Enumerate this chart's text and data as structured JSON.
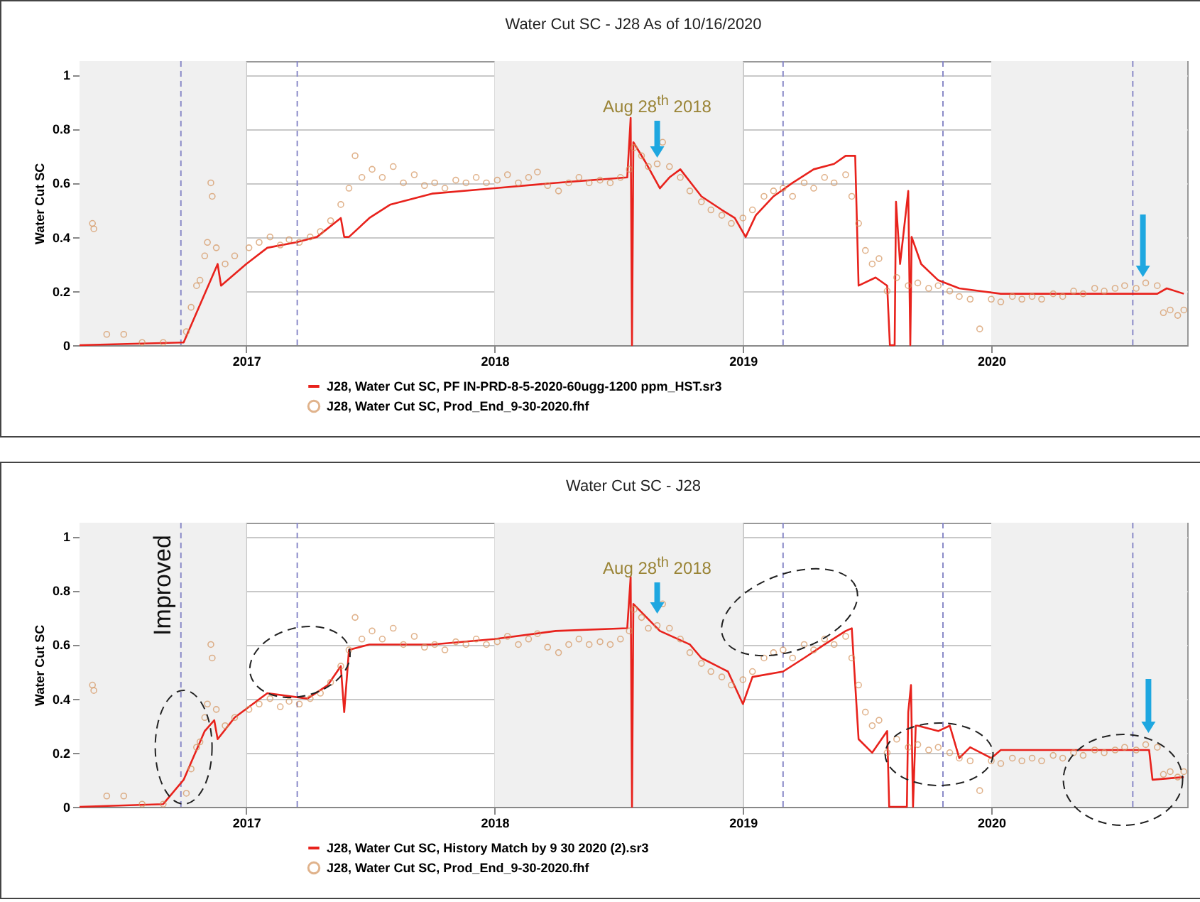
{
  "chart_data": [
    {
      "type": "line",
      "title": "Water Cut SC - J28 As of 10/16/2020",
      "ylabel": "Water Cut SC",
      "xlim": [
        "2016-05-01",
        "2020-10-15"
      ],
      "ylim": [
        0,
        1.05
      ],
      "xticks": [
        "2017",
        "2018",
        "2019",
        "2020"
      ],
      "yticks": [
        0,
        0.2,
        0.4,
        0.6,
        0.8,
        1
      ],
      "grid": true,
      "legend": "bottom",
      "bands": [
        {
          "axis": "x",
          "from": "2016-05-01",
          "to": "2017-01-01",
          "color": "#f0f0f0"
        },
        {
          "axis": "x",
          "from": "2018-01-01",
          "to": "2019-01-01",
          "color": "#f0f0f0"
        },
        {
          "axis": "x",
          "from": "2020-01-01",
          "to": "2020-10-15",
          "color": "#f0f0f0"
        }
      ],
      "ref_lines": [
        {
          "axis": "x",
          "value": "2016-09-27",
          "color": "#8a8ac8",
          "line_style": "dashed"
        },
        {
          "axis": "x",
          "value": "2017-03-17",
          "color": "#8a8ac8",
          "line_style": "dashed"
        },
        {
          "axis": "x",
          "value": "2019-03-01",
          "color": "#8a8ac8",
          "line_style": "dashed"
        },
        {
          "axis": "x",
          "value": "2019-10-22",
          "color": "#8a8ac8",
          "line_style": "dashed"
        },
        {
          "axis": "x",
          "value": "2020-07-27",
          "color": "#8a8ac8",
          "line_style": "dashed"
        }
      ],
      "annotations": [
        "Aug 28$^{th}$ 2018"
      ],
      "series": [
        {
          "name": "J28, Water Cut SC, PF IN-PRD-8-5-2020-60ugg-1200 ppm_HST.sr3",
          "type": "line",
          "color": "#e8221c",
          "x": [
            "2016-05-01",
            "2016-10-01",
            "2016-11-20",
            "2016-11-25",
            "2017-01-01",
            "2017-02-01",
            "2017-03-15",
            "2017-04-15",
            "2017-05-20",
            "2017-05-25",
            "2017-06-01",
            "2017-07-01",
            "2017-08-01",
            "2017-10-01",
            "2018-01-01",
            "2018-04-01",
            "2018-07-15",
            "2018-07-20",
            "2018-07-22",
            "2018-07-24",
            "2018-08-10",
            "2018-09-01",
            "2018-09-15",
            "2018-10-01",
            "2018-11-01",
            "2018-12-01",
            "2018-12-20",
            "2019-01-05",
            "2019-01-20",
            "2019-02-15",
            "2019-03-15",
            "2019-04-15",
            "2019-05-15",
            "2019-06-01",
            "2019-06-15",
            "2019-06-20",
            "2019-07-15",
            "2019-08-01",
            "2019-08-05",
            "2019-08-12",
            "2019-08-14",
            "2019-08-20",
            "2019-09-01",
            "2019-09-04",
            "2019-09-06",
            "2019-09-20",
            "2019-10-15",
            "2019-11-15",
            "2019-12-15",
            "2020-01-15",
            "2020-09-01",
            "2020-09-15",
            "2020-10-10"
          ],
          "values": [
            0,
            0.01,
            0.3,
            0.22,
            0.3,
            0.36,
            0.38,
            0.4,
            0.47,
            0.4,
            0.4,
            0.47,
            0.52,
            0.56,
            0.58,
            0.6,
            0.62,
            0.84,
            0,
            0.75,
            0.68,
            0.58,
            0.62,
            0.65,
            0.55,
            0.5,
            0.47,
            0.4,
            0.48,
            0.55,
            0.6,
            0.65,
            0.67,
            0.7,
            0.7,
            0.22,
            0.25,
            0.22,
            0,
            0,
            0.53,
            0.3,
            0.57,
            0,
            0.4,
            0.3,
            0.24,
            0.21,
            0.2,
            0.19,
            0.19,
            0.21,
            0.19
          ]
        },
        {
          "name": "J28, Water Cut SC, Prod_End_9-30-2020.fhf",
          "type": "scatter",
          "marker": "circle",
          "color": "#d4935c",
          "x": [
            "2016-05-20",
            "2016-05-22",
            "2016-06-10",
            "2016-07-05",
            "2016-08-01",
            "2016-09-01",
            "2016-10-05",
            "2016-10-12",
            "2016-10-20",
            "2016-10-25",
            "2016-11-01",
            "2016-11-05",
            "2016-11-10",
            "2016-11-12",
            "2016-11-18",
            "2016-12-01",
            "2016-12-15",
            "2017-01-05",
            "2017-01-20",
            "2017-02-05",
            "2017-02-20",
            "2017-03-05",
            "2017-03-20",
            "2017-04-05",
            "2017-04-20",
            "2017-05-05",
            "2017-05-20",
            "2017-06-01",
            "2017-06-10",
            "2017-06-20",
            "2017-07-05",
            "2017-07-20",
            "2017-08-05",
            "2017-08-20",
            "2017-09-05",
            "2017-09-20",
            "2017-10-05",
            "2017-10-20",
            "2017-11-05",
            "2017-11-20",
            "2017-12-05",
            "2017-12-20",
            "2018-01-05",
            "2018-01-20",
            "2018-02-05",
            "2018-02-20",
            "2018-03-05",
            "2018-03-20",
            "2018-04-05",
            "2018-04-20",
            "2018-05-05",
            "2018-05-20",
            "2018-06-05",
            "2018-06-20",
            "2018-07-05",
            "2018-07-18",
            "2018-07-25",
            "2018-08-05",
            "2018-08-15",
            "2018-08-28",
            "2018-09-05",
            "2018-09-15",
            "2018-10-01",
            "2018-10-15",
            "2018-11-01",
            "2018-11-15",
            "2018-12-01",
            "2018-12-15",
            "2019-01-01",
            "2019-01-15",
            "2019-02-01",
            "2019-02-15",
            "2019-03-01",
            "2019-03-15",
            "2019-04-01",
            "2019-04-15",
            "2019-05-01",
            "2019-05-15",
            "2019-06-01",
            "2019-06-10",
            "2019-06-20",
            "2019-06-30",
            "2019-07-10",
            "2019-07-20",
            "2019-08-01",
            "2019-08-15",
            "2019-09-01",
            "2019-09-15",
            "2019-10-01",
            "2019-10-15",
            "2019-11-01",
            "2019-11-15",
            "2019-12-01",
            "2019-12-15",
            "2020-01-01",
            "2020-01-15",
            "2020-02-01",
            "2020-02-15",
            "2020-03-01",
            "2020-03-15",
            "2020-04-01",
            "2020-04-15",
            "2020-05-01",
            "2020-05-15",
            "2020-06-01",
            "2020-06-15",
            "2020-07-01",
            "2020-07-15",
            "2020-08-01",
            "2020-08-15",
            "2020-09-01",
            "2020-09-10",
            "2020-09-20",
            "2020-10-01",
            "2020-10-10"
          ],
          "values": [
            0.45,
            0.43,
            0.04,
            0.04,
            0.01,
            0.01,
            0.05,
            0.14,
            0.22,
            0.24,
            0.33,
            0.38,
            0.6,
            0.55,
            0.36,
            0.3,
            0.33,
            0.36,
            0.38,
            0.4,
            0.37,
            0.39,
            0.38,
            0.4,
            0.42,
            0.46,
            0.52,
            0.58,
            0.7,
            0.62,
            0.65,
            0.62,
            0.66,
            0.6,
            0.63,
            0.59,
            0.6,
            0.58,
            0.61,
            0.6,
            0.62,
            0.6,
            0.61,
            0.63,
            0.6,
            0.62,
            0.64,
            0.59,
            0.57,
            0.6,
            0.62,
            0.6,
            0.61,
            0.6,
            0.62,
            0.65,
            0.73,
            0.7,
            0.66,
            0.67,
            0.75,
            0.66,
            0.62,
            0.57,
            0.53,
            0.5,
            0.48,
            0.45,
            0.47,
            0.5,
            0.55,
            0.57,
            0.58,
            0.55,
            0.6,
            0.58,
            0.62,
            0.6,
            0.63,
            0.55,
            0.45,
            0.35,
            0.3,
            0.32,
            0.2,
            0.25,
            0.22,
            0.23,
            0.21,
            0.22,
            0.2,
            0.18,
            0.17,
            0.06,
            0.17,
            0.16,
            0.18,
            0.17,
            0.18,
            0.17,
            0.19,
            0.18,
            0.2,
            0.19,
            0.21,
            0.2,
            0.21,
            0.22,
            0.21,
            0.23,
            0.22,
            0.12,
            0.13,
            0.11,
            0.13
          ]
        }
      ]
    },
    {
      "type": "line",
      "title": "Water Cut SC - J28",
      "ylabel": "Water Cut SC",
      "xlim": [
        "2016-05-01",
        "2020-10-15"
      ],
      "ylim": [
        0,
        1.05
      ],
      "xticks": [
        "2017",
        "2018",
        "2019",
        "2020"
      ],
      "yticks": [
        0,
        0.2,
        0.4,
        0.6,
        0.8,
        1
      ],
      "grid": true,
      "legend": "bottom",
      "bands": [
        {
          "axis": "x",
          "from": "2016-05-01",
          "to": "2017-01-01",
          "color": "#f0f0f0"
        },
        {
          "axis": "x",
          "from": "2018-01-01",
          "to": "2019-01-01",
          "color": "#f0f0f0"
        },
        {
          "axis": "x",
          "from": "2020-01-01",
          "to": "2020-10-15",
          "color": "#f0f0f0"
        }
      ],
      "ref_lines": [
        {
          "axis": "x",
          "value": "2016-09-27",
          "color": "#8a8ac8",
          "line_style": "dashed"
        },
        {
          "axis": "x",
          "value": "2017-03-17",
          "color": "#8a8ac8",
          "line_style": "dashed"
        },
        {
          "axis": "x",
          "value": "2019-03-01",
          "color": "#8a8ac8",
          "line_style": "dashed"
        },
        {
          "axis": "x",
          "value": "2019-10-22",
          "color": "#8a8ac8",
          "line_style": "dashed"
        },
        {
          "axis": "x",
          "value": "2020-07-27",
          "color": "#8a8ac8",
          "line_style": "dashed"
        }
      ],
      "annotations": [
        "Improved",
        "Aug 28$^{th}$ 2018"
      ],
      "series": [
        {
          "name": "J28, Water Cut SC, History Match by 9 30 2020 (2).sr3",
          "type": "line",
          "color": "#e8221c",
          "x": [
            "2016-05-01",
            "2016-09-01",
            "2016-10-01",
            "2016-11-01",
            "2016-11-15",
            "2016-11-20",
            "2016-12-15",
            "2017-02-01",
            "2017-04-01",
            "2017-05-01",
            "2017-05-20",
            "2017-05-25",
            "2017-06-01",
            "2017-07-01",
            "2017-10-01",
            "2018-01-01",
            "2018-04-01",
            "2018-07-15",
            "2018-07-20",
            "2018-07-22",
            "2018-07-24",
            "2018-09-01",
            "2018-10-15",
            "2018-11-01",
            "2018-12-10",
            "2019-01-01",
            "2019-01-15",
            "2019-03-01",
            "2019-04-01",
            "2019-05-01",
            "2019-06-01",
            "2019-06-10",
            "2019-06-20",
            "2019-07-10",
            "2019-08-01",
            "2019-08-04",
            "2019-08-10",
            "2019-08-30",
            "2019-09-01",
            "2019-09-05",
            "2019-09-08",
            "2019-09-12",
            "2019-09-15",
            "2019-10-15",
            "2019-11-01",
            "2019-11-15",
            "2019-12-01",
            "2020-01-01",
            "2020-01-15",
            "2020-08-20",
            "2020-08-25",
            "2020-10-10"
          ],
          "values": [
            0,
            0.01,
            0.1,
            0.28,
            0.32,
            0.25,
            0.33,
            0.42,
            0.4,
            0.45,
            0.52,
            0.35,
            0.58,
            0.6,
            0.6,
            0.62,
            0.65,
            0.66,
            0.85,
            0,
            0.75,
            0.65,
            0.6,
            0.55,
            0.5,
            0.38,
            0.48,
            0.5,
            0.55,
            0.6,
            0.65,
            0.66,
            0.25,
            0.2,
            0.28,
            0,
            0,
            0,
            0.35,
            0.45,
            0,
            0.3,
            0.3,
            0.28,
            0.3,
            0.18,
            0.22,
            0.18,
            0.21,
            0.21,
            0.1,
            0.11
          ]
        },
        {
          "name": "J28, Water Cut SC, Prod_End_9-30-2020.fhf",
          "type": "scatter",
          "marker": "circle",
          "color": "#d4935c",
          "x": [
            "2016-05-20",
            "2016-05-22",
            "2016-06-10",
            "2016-07-05",
            "2016-08-01",
            "2016-09-01",
            "2016-10-05",
            "2016-10-12",
            "2016-10-20",
            "2016-10-25",
            "2016-11-01",
            "2016-11-05",
            "2016-11-10",
            "2016-11-12",
            "2016-11-18",
            "2016-12-01",
            "2016-12-15",
            "2017-01-05",
            "2017-01-20",
            "2017-02-05",
            "2017-02-20",
            "2017-03-05",
            "2017-03-20",
            "2017-04-05",
            "2017-04-20",
            "2017-05-05",
            "2017-05-20",
            "2017-06-01",
            "2017-06-10",
            "2017-06-20",
            "2017-07-05",
            "2017-07-20",
            "2017-08-05",
            "2017-08-20",
            "2017-09-05",
            "2017-09-20",
            "2017-10-05",
            "2017-10-20",
            "2017-11-05",
            "2017-11-20",
            "2017-12-05",
            "2017-12-20",
            "2018-01-05",
            "2018-01-20",
            "2018-02-05",
            "2018-02-20",
            "2018-03-05",
            "2018-03-20",
            "2018-04-05",
            "2018-04-20",
            "2018-05-05",
            "2018-05-20",
            "2018-06-05",
            "2018-06-20",
            "2018-07-05",
            "2018-07-18",
            "2018-07-25",
            "2018-08-05",
            "2018-08-15",
            "2018-08-28",
            "2018-09-05",
            "2018-09-15",
            "2018-10-01",
            "2018-10-15",
            "2018-11-01",
            "2018-11-15",
            "2018-12-01",
            "2018-12-15",
            "2019-01-01",
            "2019-01-15",
            "2019-02-01",
            "2019-02-15",
            "2019-03-01",
            "2019-03-15",
            "2019-04-01",
            "2019-04-15",
            "2019-05-01",
            "2019-05-15",
            "2019-06-01",
            "2019-06-10",
            "2019-06-20",
            "2019-06-30",
            "2019-07-10",
            "2019-07-20",
            "2019-08-01",
            "2019-08-15",
            "2019-09-01",
            "2019-09-15",
            "2019-10-01",
            "2019-10-15",
            "2019-11-01",
            "2019-11-15",
            "2019-12-01",
            "2019-12-15",
            "2020-01-01",
            "2020-01-15",
            "2020-02-01",
            "2020-02-15",
            "2020-03-01",
            "2020-03-15",
            "2020-04-01",
            "2020-04-15",
            "2020-05-01",
            "2020-05-15",
            "2020-06-01",
            "2020-06-15",
            "2020-07-01",
            "2020-07-15",
            "2020-08-01",
            "2020-08-15",
            "2020-09-01",
            "2020-09-10",
            "2020-09-20",
            "2020-10-01",
            "2020-10-10"
          ],
          "values": [
            0.45,
            0.43,
            0.04,
            0.04,
            0.01,
            0.01,
            0.05,
            0.14,
            0.22,
            0.24,
            0.33,
            0.38,
            0.6,
            0.55,
            0.36,
            0.3,
            0.33,
            0.36,
            0.38,
            0.4,
            0.37,
            0.39,
            0.38,
            0.4,
            0.42,
            0.46,
            0.52,
            0.58,
            0.7,
            0.62,
            0.65,
            0.62,
            0.66,
            0.6,
            0.63,
            0.59,
            0.6,
            0.58,
            0.61,
            0.6,
            0.62,
            0.6,
            0.61,
            0.63,
            0.6,
            0.62,
            0.64,
            0.59,
            0.57,
            0.6,
            0.62,
            0.6,
            0.61,
            0.6,
            0.62,
            0.65,
            0.73,
            0.7,
            0.66,
            0.67,
            0.75,
            0.66,
            0.62,
            0.57,
            0.53,
            0.5,
            0.48,
            0.45,
            0.47,
            0.5,
            0.55,
            0.57,
            0.58,
            0.55,
            0.6,
            0.58,
            0.62,
            0.6,
            0.63,
            0.55,
            0.45,
            0.35,
            0.3,
            0.32,
            0.2,
            0.25,
            0.22,
            0.23,
            0.21,
            0.22,
            0.2,
            0.18,
            0.17,
            0.06,
            0.17,
            0.16,
            0.18,
            0.17,
            0.18,
            0.17,
            0.19,
            0.18,
            0.2,
            0.19,
            0.21,
            0.2,
            0.21,
            0.22,
            0.21,
            0.23,
            0.22,
            0.12,
            0.13,
            0.11,
            0.13
          ]
        }
      ]
    }
  ]
}
